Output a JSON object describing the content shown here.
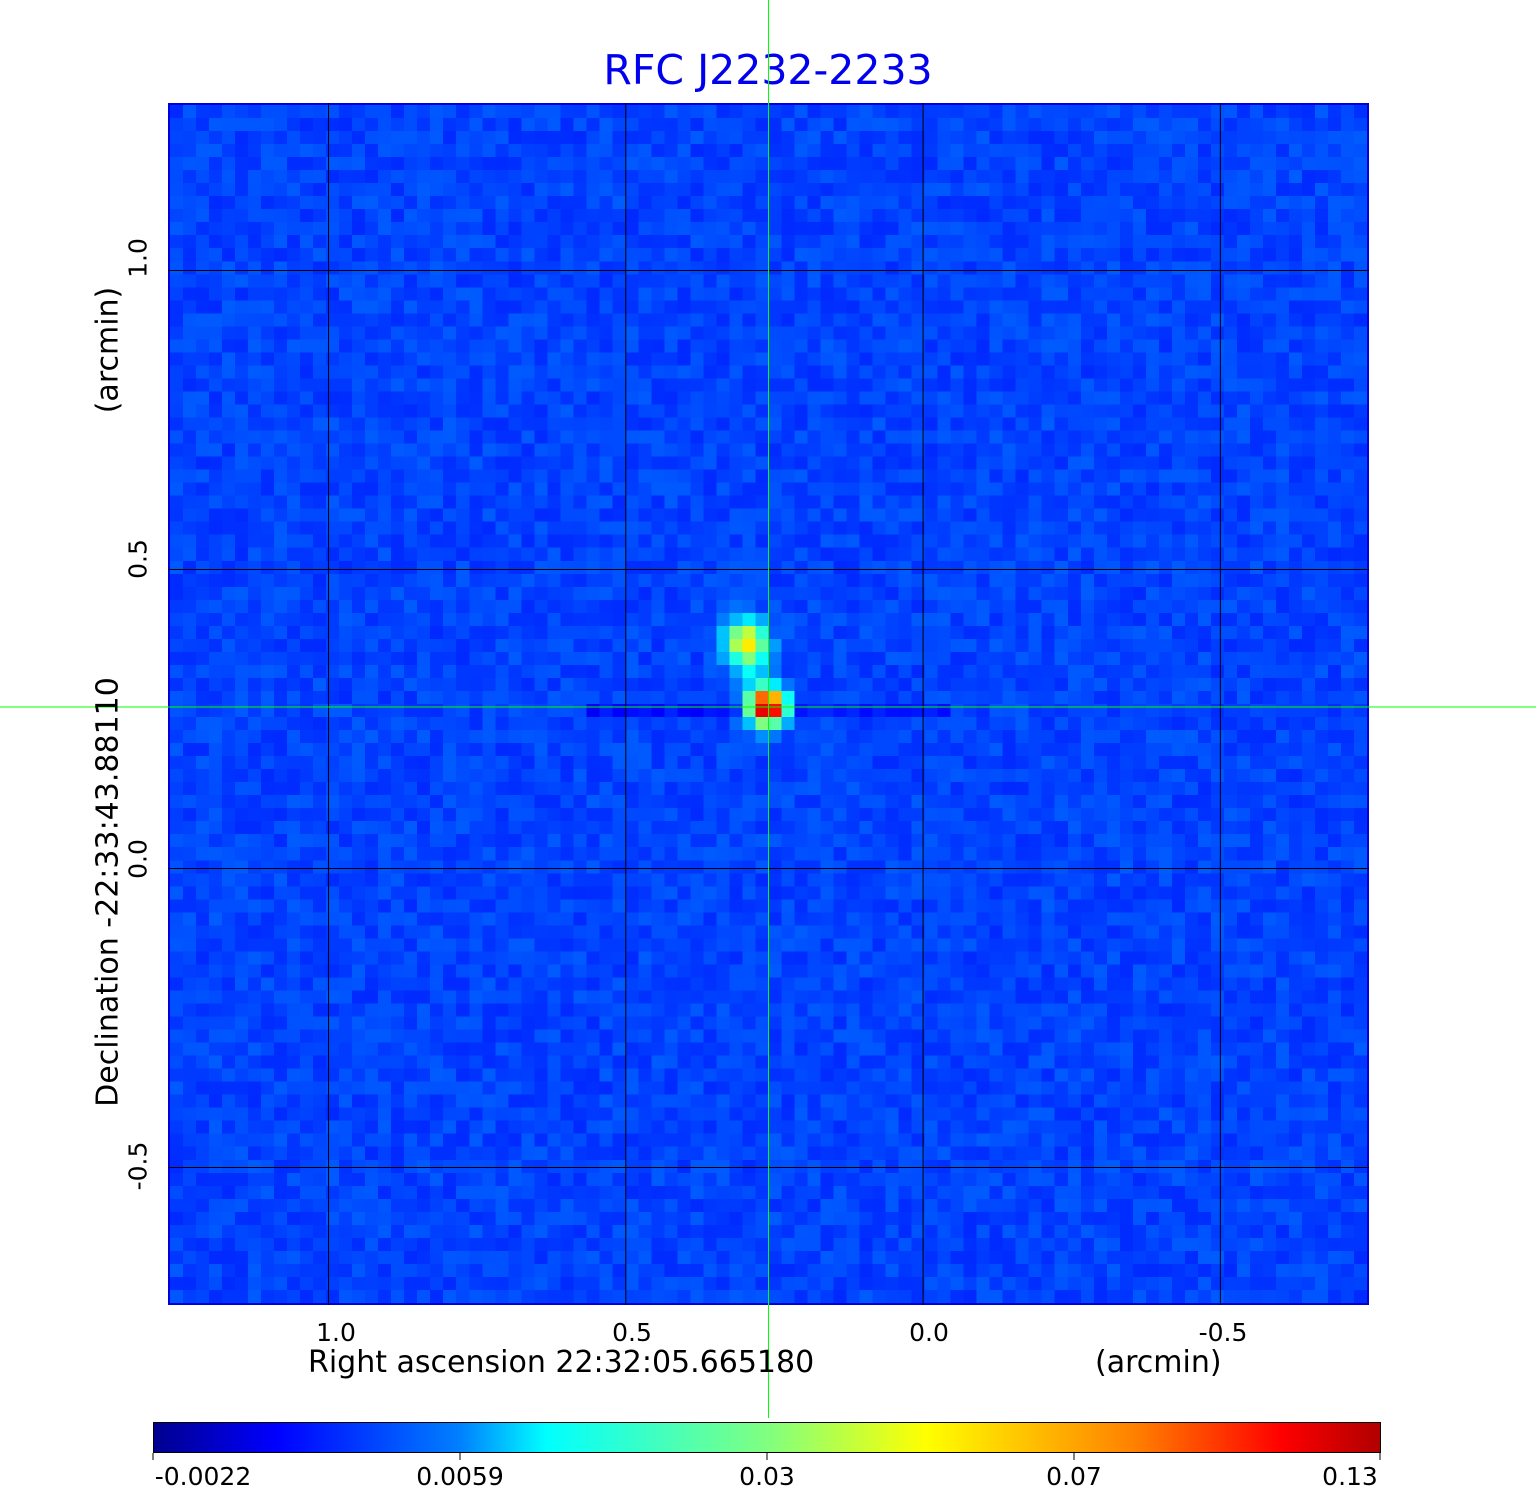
{
  "chart_data": {
    "type": "heatmap",
    "title": "RFC J2232-2233",
    "xlabel": "Right ascension  22:32:05.665180",
    "xunit": "(arcmin)",
    "ylabel": "Declination  -22:33:43.88110",
    "yunit": "(arcmin)",
    "xlim": [
      1.27,
      -0.75
    ],
    "ylim": [
      -0.73,
      1.28
    ],
    "xticks": [
      "1.0",
      "0.5",
      "0.0",
      "-0.5"
    ],
    "xtick_values": [
      1.0,
      0.5,
      0.0,
      -0.5
    ],
    "yticks": [
      "1.0",
      "0.5",
      "0.0",
      "-0.5"
    ],
    "ytick_values": [
      1.0,
      0.5,
      0.0,
      -0.5
    ],
    "grid": true,
    "colormap": "jet",
    "colorbar": {
      "ticks": [
        "-0.0022",
        "0.0059",
        "0.03",
        "0.07",
        "0.13"
      ],
      "tick_values": [
        -0.0022,
        0.0059,
        0.03,
        0.07,
        0.13
      ],
      "placement": "bottom"
    },
    "crosshair": {
      "x": 0.26,
      "y": 0.27,
      "color": "#00ff00"
    },
    "sources": [
      {
        "x": 0.26,
        "y": 0.27,
        "peak": 0.13
      },
      {
        "x": 0.3,
        "y": 0.38,
        "peak": 0.03
      }
    ]
  }
}
